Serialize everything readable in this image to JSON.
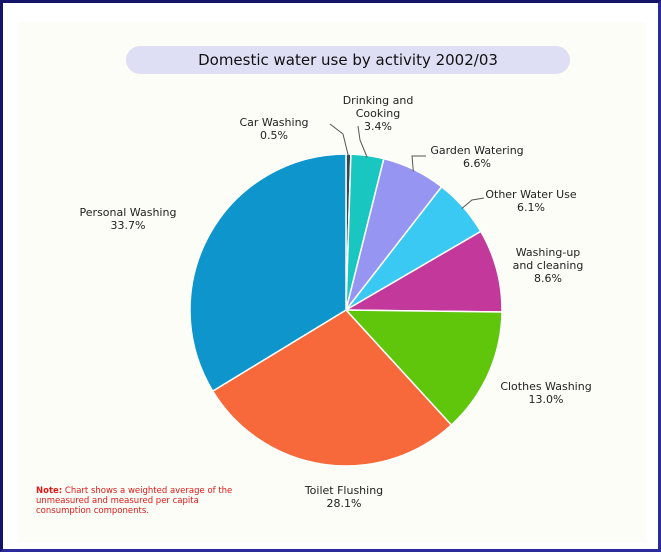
{
  "chart_data": {
    "type": "pie",
    "title": "Domestic water use by activity 2002/03",
    "slices": [
      {
        "label": "Car Washing",
        "value": 0.5,
        "value_label": "0.5%",
        "color": "#2e4a52"
      },
      {
        "label": "Drinking and Cooking",
        "value": 3.4,
        "value_label": "3.4%",
        "color": "#19c7c0"
      },
      {
        "label": "Garden Watering",
        "value": 6.6,
        "value_label": "6.6%",
        "color": "#9696f2"
      },
      {
        "label": "Other Water Use",
        "value": 6.1,
        "value_label": "6.1%",
        "color": "#39c9f2"
      },
      {
        "label": "Washing-up and cleaning",
        "value": 8.6,
        "value_label": "8.6%",
        "color": "#c2399b"
      },
      {
        "label": "Clothes Washing",
        "value": 13.0,
        "value_label": "13.0%",
        "color": "#5fc60c"
      },
      {
        "label": "Toilet Flushing",
        "value": 28.1,
        "value_label": "28.1%",
        "color": "#f7693a"
      },
      {
        "label": "Personal Washing",
        "value": 33.7,
        "value_label": "33.7%",
        "color": "#0e95cc"
      }
    ]
  },
  "labels": {
    "car": {
      "name": "Car Washing",
      "pct": "0.5%"
    },
    "drink": {
      "name": "Drinking and Cooking",
      "pct": "3.4%"
    },
    "garden": {
      "name": "Garden Watering",
      "pct": "6.6%"
    },
    "other": {
      "name": "Other Water Use",
      "pct": "6.1%"
    },
    "washup": {
      "name": "Washing-up and cleaning",
      "pct": "8.6%"
    },
    "clothes": {
      "name": "Clothes Washing",
      "pct": "13.0%"
    },
    "toilet": {
      "name": "Toilet Flushing",
      "pct": "28.1%"
    },
    "personal": {
      "name": "Personal Washing",
      "pct": "33.7%"
    }
  },
  "note": {
    "prefix": "Note:",
    "text": "Chart shows a weighted average of the unmeasured and measured per capita consumption components."
  }
}
